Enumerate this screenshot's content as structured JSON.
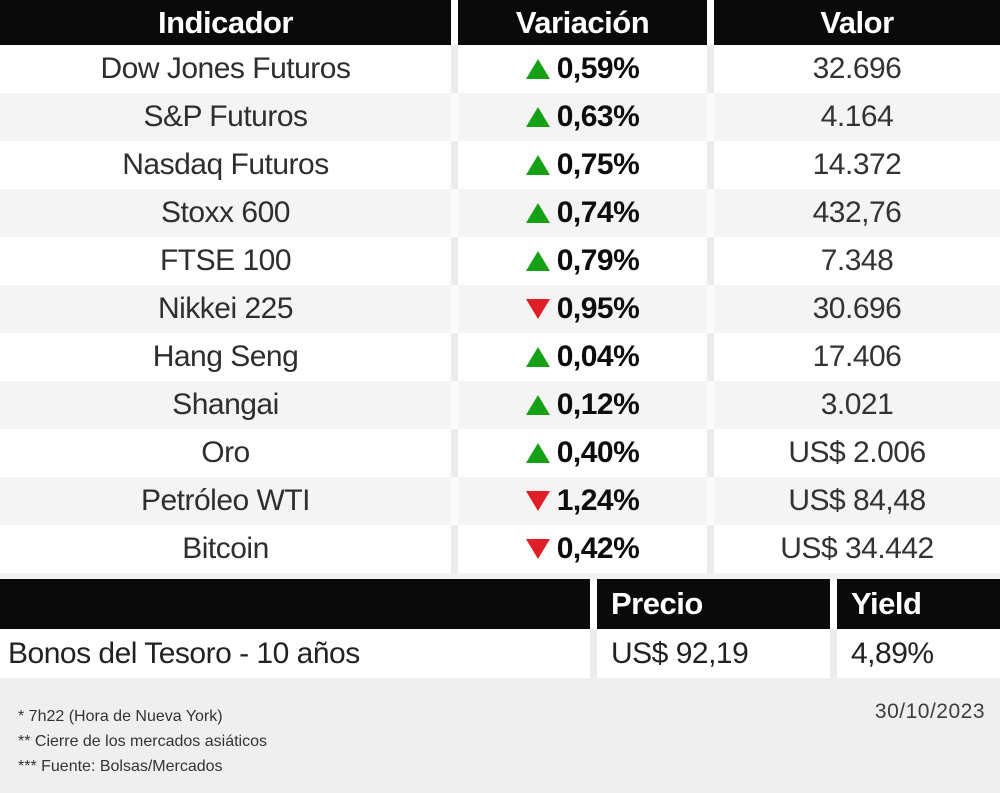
{
  "colors": {
    "up": "#16a016",
    "down": "#df1f27",
    "header_bg": "#0a0a0a",
    "alt_row_bg": "#f4f4f4",
    "footer_bg": "#efefef"
  },
  "market_table": {
    "headers": {
      "indicator": "Indicador",
      "variation": "Variación",
      "value": "Valor"
    },
    "rows": [
      {
        "indicator": "Dow Jones Futuros",
        "direction": "up",
        "variation": "0,59%",
        "value": "32.696"
      },
      {
        "indicator": "S&P Futuros",
        "direction": "up",
        "variation": "0,63%",
        "value": "4.164"
      },
      {
        "indicator": "Nasdaq Futuros",
        "direction": "up",
        "variation": "0,75%",
        "value": "14.372"
      },
      {
        "indicator": "Stoxx 600",
        "direction": "up",
        "variation": "0,74%",
        "value": "432,76"
      },
      {
        "indicator": "FTSE 100",
        "direction": "up",
        "variation": "0,79%",
        "value": "7.348"
      },
      {
        "indicator": "Nikkei 225",
        "direction": "down",
        "variation": "0,95%",
        "value": "30.696"
      },
      {
        "indicator": "Hang Seng",
        "direction": "up",
        "variation": "0,04%",
        "value": "17.406"
      },
      {
        "indicator": "Shangai",
        "direction": "up",
        "variation": "0,12%",
        "value": "3.021"
      },
      {
        "indicator": "Oro",
        "direction": "up",
        "variation": "0,40%",
        "value": "US$ 2.006"
      },
      {
        "indicator": "Petróleo WTI",
        "direction": "down",
        "variation": "1,24%",
        "value": "US$ 84,48"
      },
      {
        "indicator": "Bitcoin",
        "direction": "down",
        "variation": "0,42%",
        "value": "US$ 34.442"
      }
    ]
  },
  "bonds_table": {
    "headers": {
      "price": "Precio",
      "yield": "Yield"
    },
    "row": {
      "label": "Bonos del Tesoro - 10 años",
      "price": "US$ 92,19",
      "yield": "4,89%"
    }
  },
  "footer": {
    "notes": [
      "* 7h22 (Hora de Nueva York)",
      "** Cierre de los mercados asiáticos",
      "*** Fuente: Bolsas/Mercados"
    ],
    "date": "30/10/2023"
  },
  "chart_data": [
    {
      "type": "table",
      "columns": [
        "Indicador",
        "Variación",
        "Valor"
      ],
      "rows": [
        [
          "Dow Jones Futuros",
          "up 0,59%",
          "32.696"
        ],
        [
          "S&P Futuros",
          "up 0,63%",
          "4.164"
        ],
        [
          "Nasdaq Futuros",
          "up 0,75%",
          "14.372"
        ],
        [
          "Stoxx 600",
          "up 0,74%",
          "432,76"
        ],
        [
          "FTSE 100",
          "up 0,79%",
          "7.348"
        ],
        [
          "Nikkei 225",
          "down 0,95%",
          "30.696"
        ],
        [
          "Hang Seng",
          "up 0,04%",
          "17.406"
        ],
        [
          "Shangai",
          "up 0,12%",
          "3.021"
        ],
        [
          "Oro",
          "up 0,40%",
          "US$ 2.006"
        ],
        [
          "Petróleo WTI",
          "down 1,24%",
          "US$ 84,48"
        ],
        [
          "Bitcoin",
          "down 0,42%",
          "US$ 34.442"
        ]
      ]
    },
    {
      "type": "table",
      "columns": [
        "",
        "Precio",
        "Yield"
      ],
      "rows": [
        [
          "Bonos del Tesoro - 10 años",
          "US$ 92,19",
          "4,89%"
        ]
      ]
    }
  ]
}
